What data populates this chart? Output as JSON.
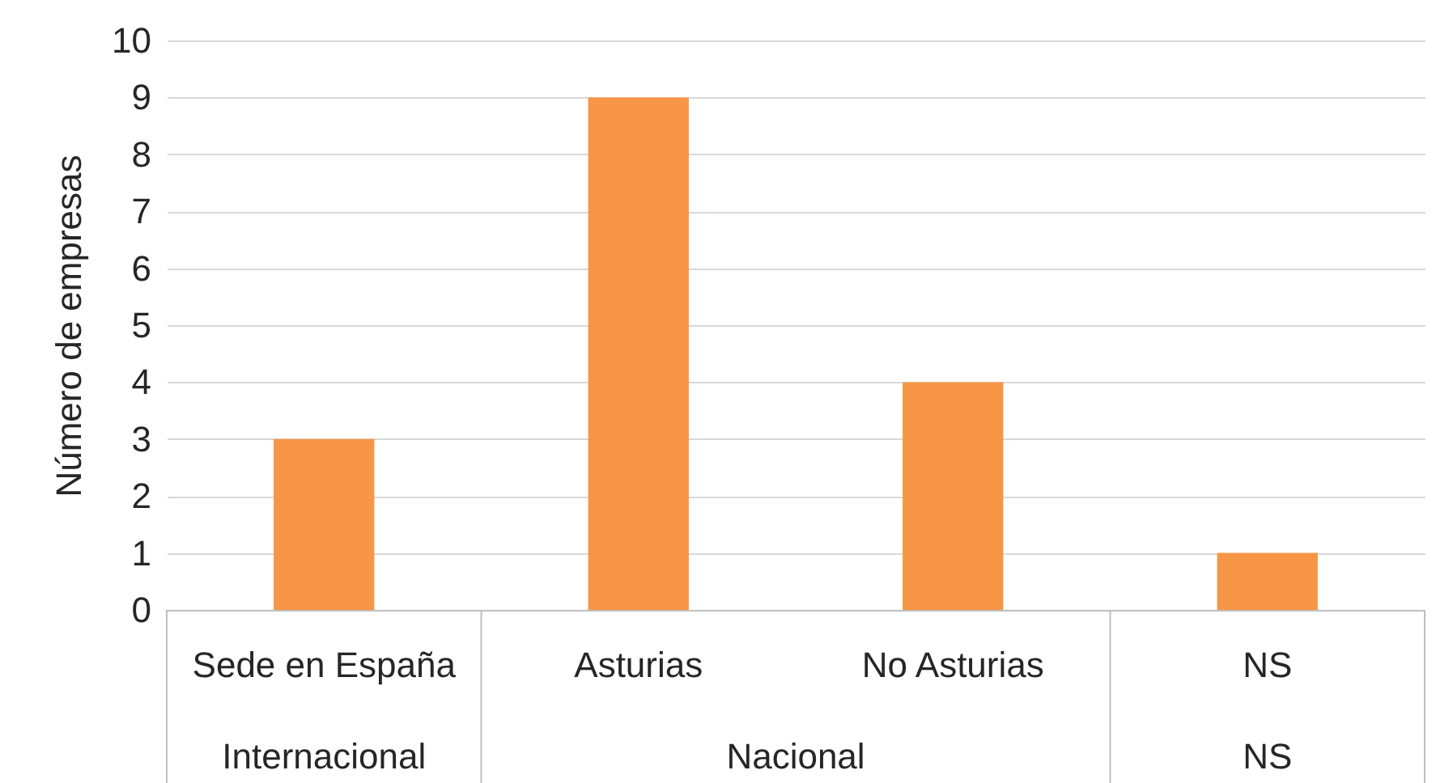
{
  "chart_data": {
    "type": "bar",
    "ylabel": "Número de empresas",
    "categories": [
      "Sede en España",
      "Asturias",
      "No Asturias",
      "NS"
    ],
    "values": [
      3,
      9,
      4,
      1
    ],
    "color": "#f79646",
    "ylim": [
      0,
      10
    ],
    "yticks": [
      0,
      1,
      2,
      3,
      4,
      5,
      6,
      7,
      8,
      9,
      10
    ],
    "grid": "y",
    "annotations": [
      "Internacional",
      "Nacional",
      "NS"
    ]
  }
}
